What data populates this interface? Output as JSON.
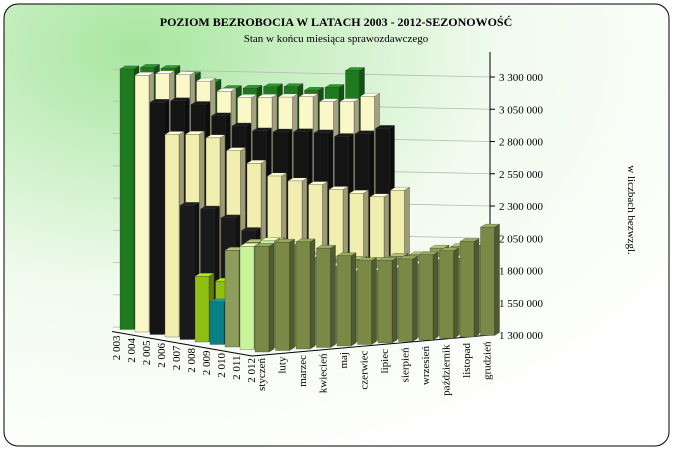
{
  "chart_data": {
    "type": "bar3d",
    "title": "POZIOM BEZROBOCIA W LATACH 2003 - 2012-SEZONOWOŚĆ",
    "subtitle": "Stan w końcu miesiąca sprawozdawczego",
    "y_label": "w liczbach bezwzgl.",
    "categories": [
      "styczeń",
      "luty",
      "marzec",
      "kwiecień",
      "maj",
      "czerwiec",
      "lipiec",
      "sierpień",
      "wrzesień",
      "październik",
      "listopad",
      "grudzień"
    ],
    "ylim": [
      1300000,
      3300000
    ],
    "yticks": [
      {
        "value": 1300000,
        "label": "1 300 000"
      },
      {
        "value": 1550000,
        "label": "1 550 000"
      },
      {
        "value": 1800000,
        "label": "1 800 000"
      },
      {
        "value": 2050000,
        "label": "2 050 000"
      },
      {
        "value": 2300000,
        "label": "2 300 000"
      },
      {
        "value": 2550000,
        "label": "2 550 000"
      },
      {
        "value": 2800000,
        "label": "2 800 000"
      },
      {
        "value": 3050000,
        "label": "3 050 000"
      },
      {
        "value": 3300000,
        "label": "3 300 000"
      }
    ],
    "grid": true,
    "series": [
      {
        "name": "2 003",
        "color": "#1f7a1f",
        "values": [
          3320000,
          3320000,
          3300000,
          3240000,
          3170000,
          3110000,
          3100000,
          3100000,
          3090000,
          3050000,
          3060000,
          3180000
        ]
      },
      {
        "name": "2 004",
        "color": "#fbf8c8",
        "values": [
          3290000,
          3290000,
          3270000,
          3210000,
          3120000,
          3060000,
          3050000,
          3040000,
          3030000,
          2980000,
          2970000,
          3000000
        ]
      },
      {
        "name": "2 005",
        "color": "#141414",
        "values": [
          3100000,
          3100000,
          3060000,
          2960000,
          2870000,
          2820000,
          2800000,
          2790000,
          2770000,
          2730000,
          2740000,
          2770000
        ]
      },
      {
        "name": "2 006",
        "color": "#f2eeb0",
        "values": [
          2870000,
          2860000,
          2820000,
          2710000,
          2600000,
          2490000,
          2440000,
          2400000,
          2350000,
          2310000,
          2270000,
          2310000
        ]
      },
      {
        "name": "2 007",
        "color": "#1a1a1a",
        "values": [
          2340000,
          2300000,
          2220000,
          2110000,
          2000000,
          1910000,
          1870000,
          1830000,
          1790000,
          1730000,
          1710000,
          1750000
        ]
      },
      {
        "name": "2 008",
        "color": "#8fbf10",
        "values": [
          1810000,
          1760000,
          1690000,
          1600000,
          1530000,
          1470000,
          1440000,
          1420000,
          1400000,
          1390000,
          1420000,
          1470000
        ]
      },
      {
        "name": "2 009",
        "color": "#0b7f86",
        "values": [
          1630000,
          1700000,
          1750000,
          1760000,
          1760000,
          1750000,
          1770000,
          1800000,
          1830000,
          1860000,
          1860000,
          1890000
        ]
      },
      {
        "name": "2 010",
        "color": "#8e9c5c",
        "values": [
          2050000,
          2100000,
          2100000,
          2030000,
          1960000,
          1920000,
          1910000,
          1890000,
          1910000,
          1910000,
          1950000,
          1950000
        ]
      },
      {
        "name": "2 011",
        "color": "#c8f59a",
        "values": [
          2100000,
          2130000,
          2090000,
          1980000,
          1900000,
          1850000,
          1840000,
          1850000,
          1870000,
          1890000,
          1890000,
          1980000
        ]
      },
      {
        "name": "2 012",
        "color": "#7a8a46",
        "values": [
          2120000,
          2140000,
          2130000,
          2070000,
          2000000,
          1950000,
          1940000,
          1940000,
          1960000,
          1980000,
          2040000,
          2140000
        ]
      }
    ]
  }
}
